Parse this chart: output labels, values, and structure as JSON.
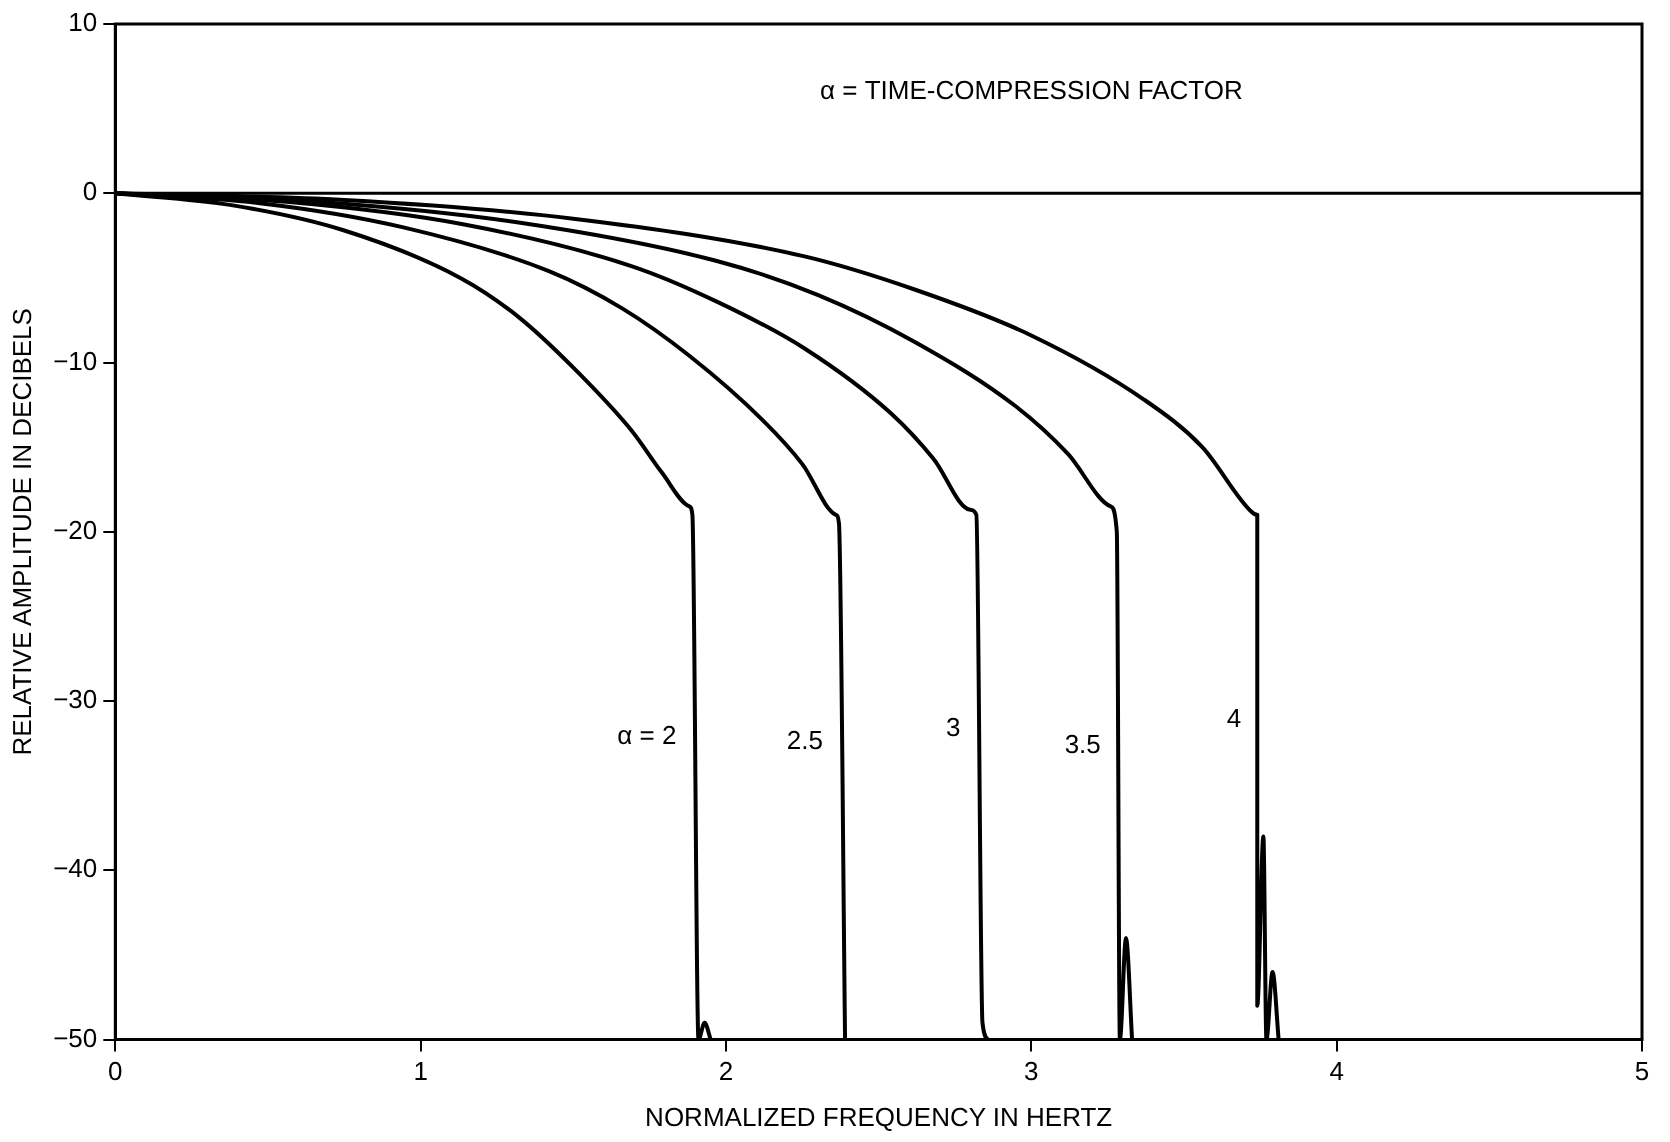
{
  "chart_data": {
    "type": "line",
    "xlabel": "NORMALIZED FREQUENCY IN HERTZ",
    "ylabel": "RELATIVE AMPLITUDE IN DECIBELS",
    "xlim": [
      0,
      5
    ],
    "ylim": [
      -50,
      10
    ],
    "xticks": [
      0,
      1,
      2,
      3,
      4,
      5
    ],
    "yticks": [
      {
        "value": -50,
        "label": "−50"
      },
      {
        "value": -40,
        "label": "−40"
      },
      {
        "value": -30,
        "label": "−30"
      },
      {
        "value": -20,
        "label": "−20"
      },
      {
        "value": -10,
        "label": "−10"
      },
      0,
      10
    ],
    "grid": false,
    "legend": false,
    "marker": "none",
    "line_style": "solid",
    "annotations": [
      "α = TIME-COMPRESSION FACTOR"
    ],
    "ref_lines": [
      {
        "axis": "y",
        "value": 0,
        "color": "#000000"
      }
    ],
    "series": [
      {
        "name": "α = 2",
        "color": "#000000",
        "x": [
          0,
          0.38,
          0.75,
          1.13,
          1.32,
          1.5,
          1.69,
          1.79,
          1.88,
          1.89,
          1.91,
          1.93,
          1.95
        ],
        "values": [
          0,
          -0.7,
          -2.2,
          -5,
          -7.3,
          -10.3,
          -14,
          -16.5,
          -18.5,
          -19,
          -50,
          -49,
          -50
        ]
      },
      {
        "name": "2.5",
        "color": "#000000",
        "x": [
          0,
          0.48,
          0.94,
          1.42,
          1.66,
          1.88,
          2.12,
          2.25,
          2.36,
          2.37,
          2.39
        ],
        "values": [
          0,
          -0.6,
          -2,
          -4.6,
          -6.8,
          -9.6,
          -13.4,
          -16,
          -19,
          -19.5,
          -50
        ]
      },
      {
        "name": "3",
        "color": "#000000",
        "x": [
          0,
          0.56,
          1.13,
          1.69,
          1.97,
          2.26,
          2.54,
          2.68,
          2.8,
          2.82,
          2.84,
          2.86
        ],
        "values": [
          0,
          -0.5,
          -1.8,
          -4.3,
          -6.4,
          -9.2,
          -13,
          -15.7,
          -18.7,
          -19,
          -49,
          -50
        ]
      },
      {
        "name": "3.5",
        "color": "#000000",
        "x": [
          0,
          0.66,
          1.31,
          1.97,
          2.3,
          2.62,
          2.95,
          3.12,
          3.26,
          3.28,
          3.29,
          3.31,
          3.33
        ],
        "values": [
          0,
          -0.5,
          -1.7,
          -4,
          -6,
          -8.8,
          -12.6,
          -15.4,
          -18.5,
          -20,
          -50,
          -44,
          -50
        ]
      },
      {
        "name": "4",
        "color": "#000000",
        "x": [
          0,
          0.75,
          1.5,
          2.25,
          2.62,
          3,
          3.37,
          3.56,
          3.72,
          3.74,
          3.74,
          3.76,
          3.77,
          3.79,
          3.81
        ],
        "values": [
          0,
          -0.4,
          -1.5,
          -3.7,
          -5.7,
          -8.4,
          -12.2,
          -15,
          -18.8,
          -19,
          -48,
          -38,
          -50,
          -46,
          -50
        ]
      }
    ]
  }
}
